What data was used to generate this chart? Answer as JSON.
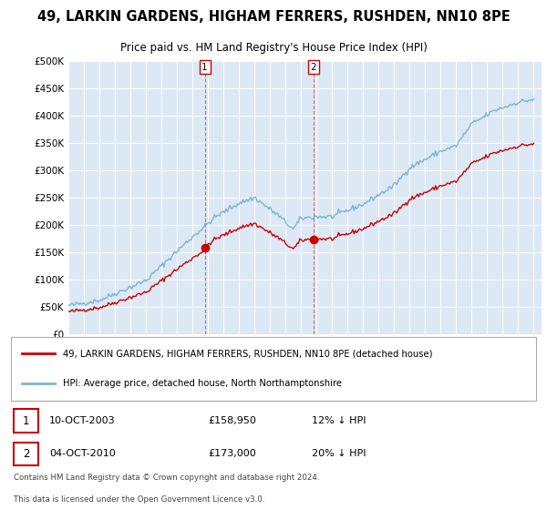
{
  "title1": "49, LARKIN GARDENS, HIGHAM FERRERS, RUSHDEN, NN10 8PE",
  "title2": "Price paid vs. HM Land Registry's House Price Index (HPI)",
  "legend_line1": "49, LARKIN GARDENS, HIGHAM FERRERS, RUSHDEN, NN10 8PE (detached house)",
  "legend_line2": "HPI: Average price, detached house, North Northamptonshire",
  "sale1_date": "10-OCT-2003",
  "sale1_price": "£158,950",
  "sale1_hpi": "12% ↓ HPI",
  "sale2_date": "04-OCT-2010",
  "sale2_price": "£173,000",
  "sale2_hpi": "20% ↓ HPI",
  "footnote1": "Contains HM Land Registry data © Crown copyright and database right 2024.",
  "footnote2": "This data is licensed under the Open Government Licence v3.0.",
  "hpi_color": "#7ab5d8",
  "sale_color": "#cc0000",
  "background_color": "#dde8f5",
  "grid_color": "#ffffff",
  "border_color": "#aaaaaa"
}
